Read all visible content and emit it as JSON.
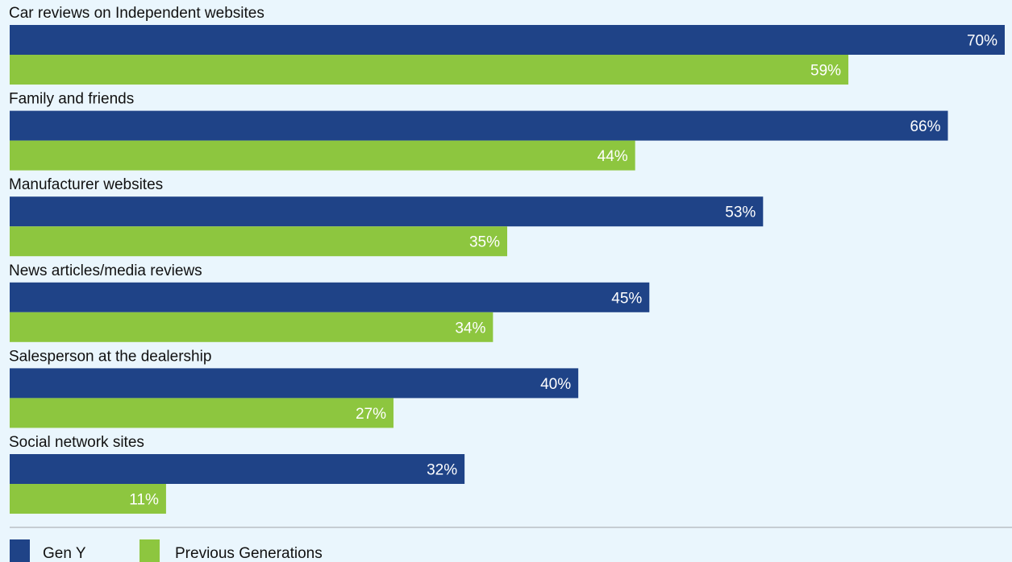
{
  "chart_data": {
    "type": "bar",
    "orientation": "horizontal",
    "categories": [
      "Car reviews on Independent websites",
      "Family and friends",
      "Manufacturer websites",
      "News articles/media reviews",
      "Salesperson at the dealership",
      "Social network sites"
    ],
    "series": [
      {
        "name": "Gen Y",
        "color": "#1f4387",
        "values": [
          70,
          66,
          53,
          45,
          40,
          32
        ],
        "labels": [
          "70%",
          "66%",
          "53%",
          "45%",
          "40%",
          "32%"
        ]
      },
      {
        "name": "Previous Generations",
        "color": "#8dc63f",
        "values": [
          59,
          44,
          35,
          34,
          27,
          11
        ],
        "labels": [
          "59%",
          "44%",
          "35%",
          "34%",
          "27%",
          "11%"
        ]
      }
    ],
    "unit": "%",
    "xlim": [
      0,
      70
    ],
    "grid": false,
    "legend_position": "bottom-left",
    "background": "#eaf6fd"
  }
}
